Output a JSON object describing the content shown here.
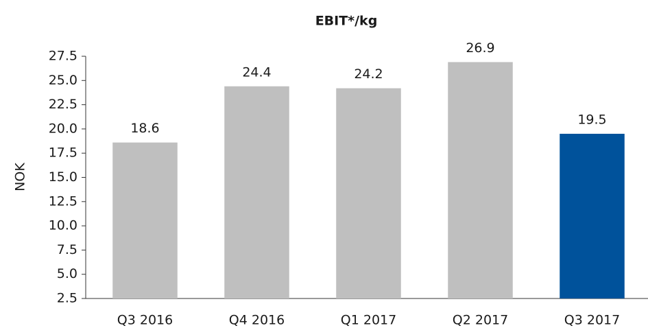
{
  "chart_data": {
    "type": "bar",
    "title": "EBIT*/kg",
    "y_label": "NOK",
    "categories": [
      "Q3 2016",
      "Q4 2016",
      "Q1 2017",
      "Q2 2017",
      "Q3 2017"
    ],
    "values": [
      18.6,
      24.4,
      24.2,
      26.9,
      19.5
    ],
    "colors": [
      "#bfbfbf",
      "#bfbfbf",
      "#bfbfbf",
      "#bfbfbf",
      "#00529b"
    ],
    "ylim": [
      2.5,
      27.5
    ],
    "yticks": [
      2.5,
      {
        "value": 5,
        "label": "5.0"
      },
      7.5,
      {
        "value": 10,
        "label": "10.0"
      },
      12.5,
      {
        "value": 15,
        "label": "15.0"
      },
      17.5,
      {
        "value": 20,
        "label": "20.0"
      },
      22.5,
      {
        "value": 25,
        "label": "25.0"
      },
      27.5
    ],
    "grid": false
  }
}
